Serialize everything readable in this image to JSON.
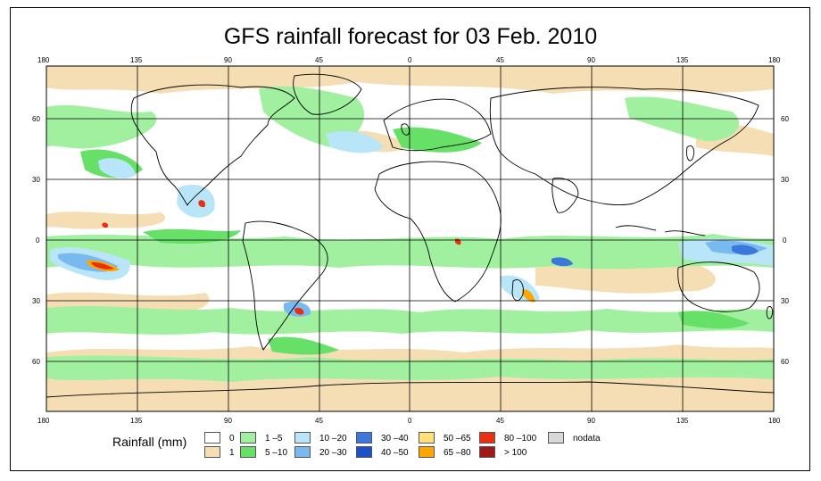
{
  "title": "GFS rainfall forecast for 03 Feb. 2010",
  "top_lon_ticks": [
    "180",
    "135",
    "90",
    "45",
    "0",
    "45",
    "90",
    "135",
    "180"
  ],
  "bottom_lon_ticks": [
    "180",
    "135",
    "90",
    "45",
    "0",
    "45",
    "90",
    "135",
    "180"
  ],
  "lat_ticks": [
    "60",
    "30",
    "0",
    "30",
    "60"
  ],
  "legend": {
    "title": "Rainfall (mm)",
    "items": [
      {
        "label": "0",
        "color": "#ffffff"
      },
      {
        "label": "1",
        "color": "#f5deb3"
      },
      {
        "label": "1 –5",
        "color": "#a0f0a0"
      },
      {
        "label": "5 –10",
        "color": "#66e066"
      },
      {
        "label": "10 –20",
        "color": "#b8e6f8"
      },
      {
        "label": "20 –30",
        "color": "#7ab8f0"
      },
      {
        "label": "30 –40",
        "color": "#3c78dc"
      },
      {
        "label": "40 –50",
        "color": "#1e50c8"
      },
      {
        "label": "50 –65",
        "color": "#ffe07a"
      },
      {
        "label": "65 –80",
        "color": "#ffa500"
      },
      {
        "label": "80 –100",
        "color": "#e83010"
      },
      {
        "label": "> 100",
        "color": "#a01818"
      },
      {
        "label": "nodata",
        "color": "#d8d8d8"
      }
    ]
  }
}
